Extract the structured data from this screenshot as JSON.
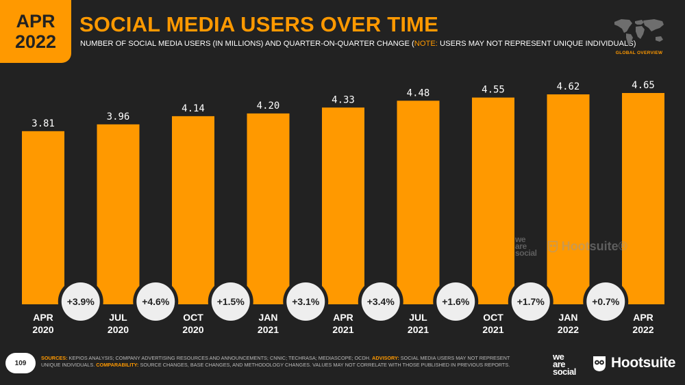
{
  "badge": {
    "month": "APR",
    "year": "2022"
  },
  "title": "SOCIAL MEDIA USERS OVER TIME",
  "subtitle": {
    "main": "NUMBER OF SOCIAL MEDIA USERS (IN MILLIONS) AND QUARTER-ON-QUARTER CHANGE (",
    "note_label": "NOTE:",
    "note_text": " USERS MAY NOT REPRESENT UNIQUE INDIVIDUALS)"
  },
  "global_overview": "GLOBAL OVERVIEW",
  "page_number": "109",
  "footer": {
    "sources_label": "SOURCES:",
    "sources_text": " KEPIOS ANALYSIS; COMPANY ADVERTISING RESOURCES AND ANNOUNCEMENTS; CNNIC; TECHRASA; MEDIASCOPE; OCDH. ",
    "advisory_label": "ADVISORY:",
    "advisory_text": " SOCIAL MEDIA USERS MAY NOT REPRESENT UNIQUE INDIVIDUALS. ",
    "comparability_label": "COMPARABILITY:",
    "comparability_text": " SOURCE CHANGES, BASE CHANGES, AND METHODOLOGY CHANGES. VALUES MAY NOT CORRELATE WITH THOSE PUBLISHED IN PREVIOUS REPORTS."
  },
  "logos": {
    "we": "we",
    "are": "are",
    "social": "social",
    "hootsuite": "Hootsuite",
    "hootsuite_reg": "Hootsuite®"
  },
  "colors": {
    "accent": "#FF9900",
    "background": "#222222",
    "text": "#FFFFFF",
    "bubble": "#EEEEEE"
  },
  "chart_data": {
    "type": "bar",
    "categories": [
      [
        "APR",
        "2020"
      ],
      [
        "JUL",
        "2020"
      ],
      [
        "OCT",
        "2020"
      ],
      [
        "JAN",
        "2021"
      ],
      [
        "APR",
        "2021"
      ],
      [
        "JUL",
        "2021"
      ],
      [
        "OCT",
        "2021"
      ],
      [
        "JAN",
        "2022"
      ],
      [
        "APR",
        "2022"
      ]
    ],
    "values": [
      3.81,
      3.96,
      4.14,
      4.2,
      4.33,
      4.48,
      4.55,
      4.62,
      4.65
    ],
    "value_labels": [
      "3.81",
      "3.96",
      "4.14",
      "4.20",
      "4.33",
      "4.48",
      "4.55",
      "4.62",
      "4.65"
    ],
    "changes": [
      "+3.9%",
      "+4.6%",
      "+1.5%",
      "+3.1%",
      "+3.4%",
      "+1.6%",
      "+1.7%",
      "+0.7%"
    ],
    "ylim": [
      0,
      4.65
    ]
  }
}
